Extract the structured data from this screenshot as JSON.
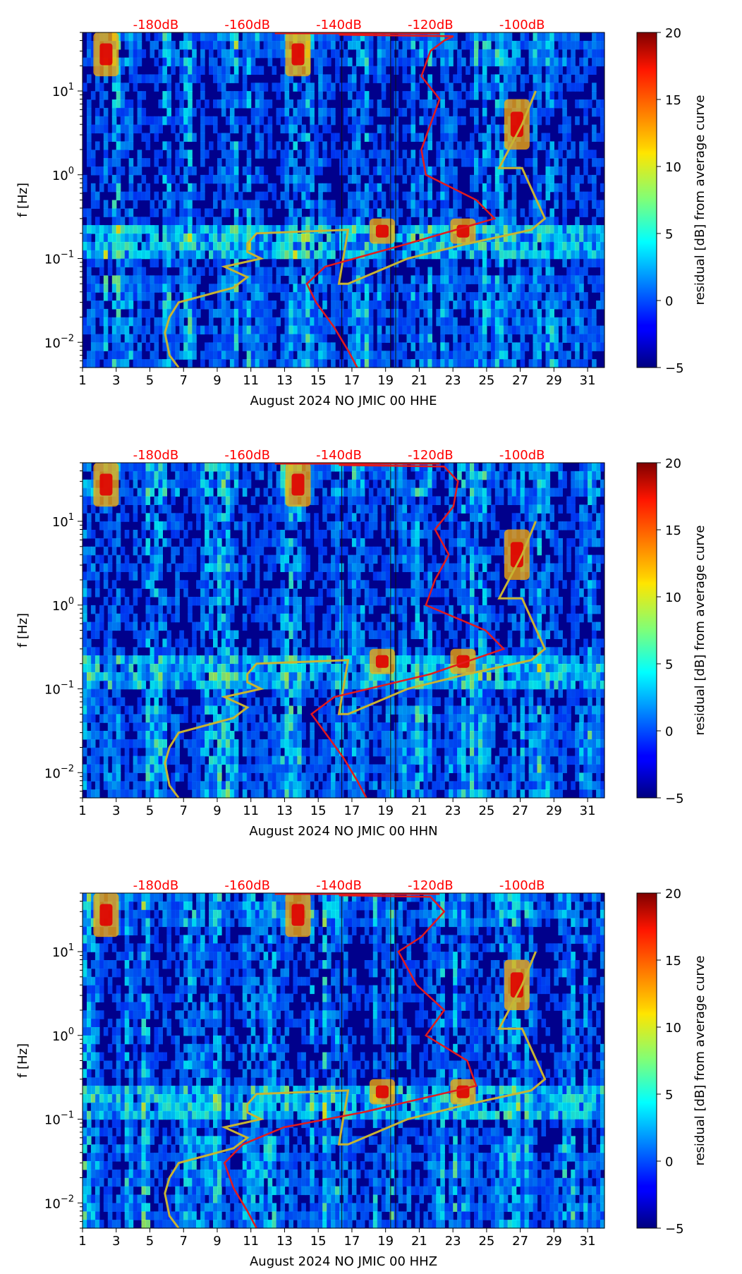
{
  "chart_data": {
    "type": "heatmap",
    "top_axis": {
      "labels": [
        "-180dB",
        "-160dB",
        "-140dB",
        "-120dB",
        "-100dB"
      ],
      "values": [
        -180,
        -160,
        -140,
        -120,
        -100
      ],
      "color": "#ff0000"
    },
    "x_ticks": [
      "1",
      "3",
      "5",
      "7",
      "9",
      "11",
      "13",
      "15",
      "17",
      "19",
      "21",
      "23",
      "25",
      "27",
      "29",
      "31"
    ],
    "x_range": [
      1,
      32
    ],
    "y_range": [
      0.005,
      50
    ],
    "y_scale": "log",
    "y_ticks": [
      {
        "value": 10,
        "base": "10",
        "exp": "1"
      },
      {
        "value": 1,
        "base": "10",
        "exp": "0"
      },
      {
        "value": 0.1,
        "base": "10",
        "exp": "−1"
      },
      {
        "value": 0.01,
        "base": "10",
        "exp": "−2"
      }
    ],
    "ylabel": "f [Hz]",
    "colorbar": {
      "label": "residual [dB] from average curve",
      "range": [
        -5,
        20
      ],
      "ticks": [
        "20",
        "15",
        "10",
        "5",
        "0",
        "−5"
      ],
      "tick_values": [
        20,
        15,
        10,
        5,
        0,
        -5
      ],
      "colormap": "jet"
    },
    "colors": {
      "red_curve": "#e31a1c",
      "yellow_curve": "#c8b432"
    },
    "high_noise_bands": [
      {
        "day": 2.4,
        "f_low": 15,
        "f_high": 50
      },
      {
        "day": 13.8,
        "f_low": 15,
        "f_high": 50
      },
      {
        "day": 18.8,
        "f_low": 0.15,
        "f_high": 0.3
      },
      {
        "day": 23.6,
        "f_low": 0.15,
        "f_high": 0.3
      },
      {
        "day": 26.8,
        "f_low": 2,
        "f_high": 8
      }
    ],
    "panels": [
      {
        "xlabel": "August 2024 NO JMIC 00 HHE",
        "red_curve": {
          "db": [
            -136,
            -138,
            -141,
            -145,
            -147,
            -143,
            -125,
            -106,
            -110,
            -121,
            -122,
            -120,
            -118,
            -122,
            -120,
            -117,
            -115,
            -140
          ],
          "f": [
            0.005,
            0.008,
            0.015,
            0.03,
            0.05,
            0.08,
            0.15,
            0.3,
            0.5,
            1,
            2,
            4,
            8,
            15,
            30,
            40,
            45,
            47
          ]
        },
        "yellow_curve": {
          "db": [
            -175,
            -177,
            -178,
            -177,
            -175,
            -163,
            -160,
            -165,
            -157,
            -160,
            -160,
            -158,
            -138,
            -140,
            -138,
            -138,
            -125,
            -112,
            -98,
            -95,
            -100,
            -105,
            -100,
            -97
          ],
          "f": [
            0.005,
            0.007,
            0.013,
            0.02,
            0.03,
            0.045,
            0.06,
            0.08,
            0.1,
            0.12,
            0.15,
            0.2,
            0.22,
            0.05,
            0.05,
            0.05,
            0.1,
            0.15,
            0.22,
            0.3,
            1.2,
            1.2,
            4,
            10
          ]
        }
      },
      {
        "xlabel": "August 2024 NO JMIC 00 HHN",
        "red_curve": {
          "db": [
            -134,
            -136,
            -139,
            -143,
            -146,
            -141,
            -120,
            -104,
            -108,
            -121,
            -119,
            -116,
            -119,
            -115,
            -114,
            -117,
            -140
          ],
          "f": [
            0.005,
            0.008,
            0.015,
            0.03,
            0.05,
            0.08,
            0.15,
            0.3,
            0.5,
            1,
            2,
            4,
            8,
            15,
            30,
            45,
            47
          ]
        },
        "yellow_curve": {
          "db": [
            -175,
            -177,
            -178,
            -177,
            -175,
            -163,
            -160,
            -165,
            -157,
            -160,
            -160,
            -158,
            -138,
            -140,
            -138,
            -138,
            -125,
            -112,
            -98,
            -95,
            -100,
            -105,
            -100,
            -97
          ],
          "f": [
            0.005,
            0.007,
            0.013,
            0.02,
            0.03,
            0.045,
            0.06,
            0.08,
            0.1,
            0.12,
            0.15,
            0.2,
            0.22,
            0.05,
            0.05,
            0.05,
            0.1,
            0.15,
            0.22,
            0.3,
            1.2,
            1.2,
            4,
            10
          ]
        }
      },
      {
        "xlabel": "August 2024 NO JMIC 00 HHZ",
        "red_curve": {
          "db": [
            -158,
            -160,
            -163,
            -165,
            -161,
            -152,
            -135,
            -110,
            -112,
            -121,
            -117,
            -123,
            -127,
            -122,
            -117,
            -120,
            -140
          ],
          "f": [
            0.005,
            0.008,
            0.015,
            0.03,
            0.05,
            0.08,
            0.12,
            0.25,
            0.5,
            1,
            2,
            4,
            10,
            15,
            30,
            45,
            47
          ]
        },
        "yellow_curve": {
          "db": [
            -175,
            -177,
            -178,
            -177,
            -175,
            -163,
            -160,
            -165,
            -157,
            -160,
            -160,
            -158,
            -138,
            -140,
            -138,
            -138,
            -125,
            -112,
            -98,
            -95,
            -100,
            -105,
            -100,
            -97
          ],
          "f": [
            0.005,
            0.007,
            0.013,
            0.02,
            0.03,
            0.045,
            0.06,
            0.08,
            0.1,
            0.12,
            0.15,
            0.2,
            0.22,
            0.05,
            0.05,
            0.05,
            0.1,
            0.15,
            0.22,
            0.3,
            1.2,
            1.2,
            4,
            10
          ]
        }
      }
    ]
  }
}
